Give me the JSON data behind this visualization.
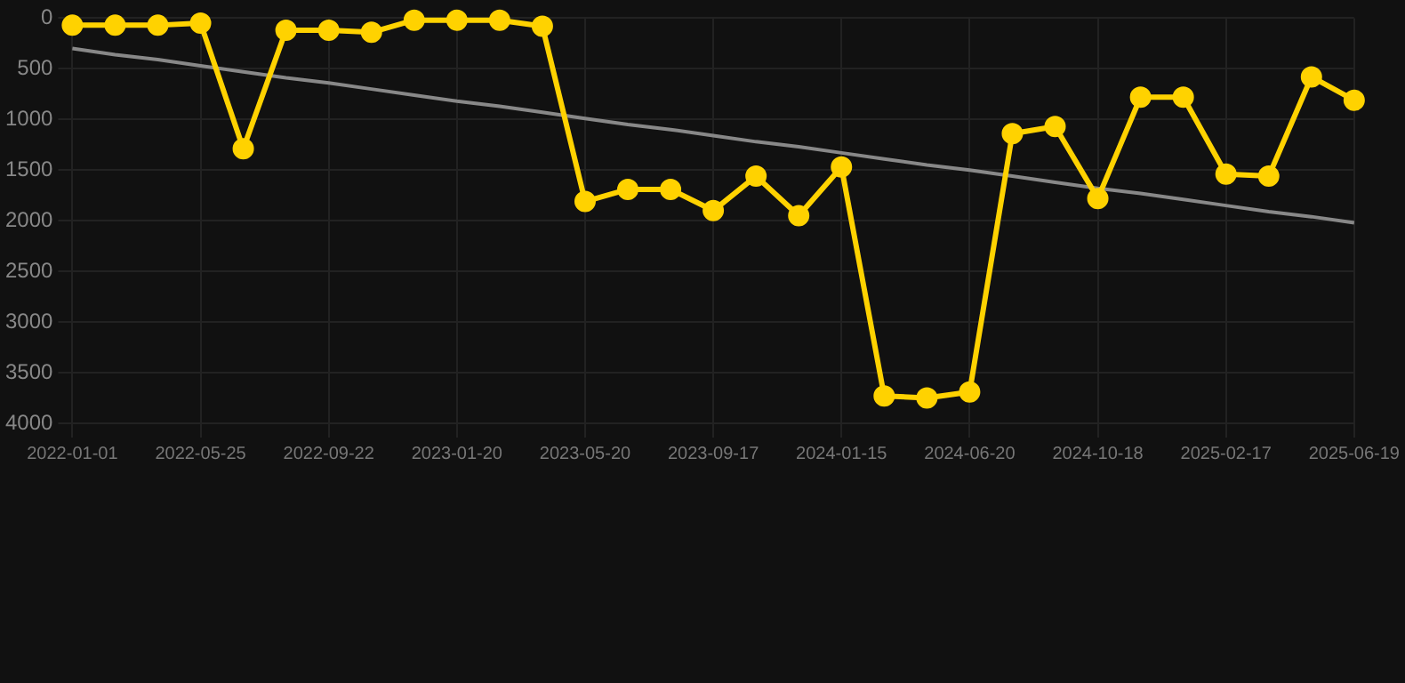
{
  "chart_data": {
    "type": "line",
    "categories": [
      "2022-01-01",
      null,
      null,
      "2022-05-25",
      null,
      null,
      "2022-09-22",
      null,
      null,
      "2023-01-20",
      null,
      null,
      "2023-05-20",
      null,
      null,
      "2023-09-17",
      null,
      null,
      "2024-01-15",
      null,
      null,
      "2024-06-20",
      null,
      null,
      "2024-10-18",
      null,
      null,
      "2025-02-17",
      null,
      null,
      "2025-06-19"
    ],
    "series": [
      {
        "color": "#ffd200",
        "values": [
          70,
          70,
          70,
          50,
          1290,
          120,
          120,
          140,
          20,
          20,
          20,
          80,
          1810,
          1690,
          1690,
          1900,
          1560,
          1950,
          1470,
          3730,
          3750,
          3690,
          1140,
          1070,
          1780,
          780,
          780,
          1540,
          1560,
          580,
          810
        ]
      },
      {
        "type": "line",
        "color": "#888888",
        "marker": "none",
        "values": [
          300,
          360,
          410,
          470,
          530,
          590,
          640,
          700,
          760,
          820,
          870,
          930,
          990,
          1050,
          1100,
          1160,
          1220,
          1270,
          1330,
          1390,
          1450,
          1500,
          1560,
          1620,
          1680,
          1730,
          1790,
          1850,
          1910,
          1960,
          2020
        ]
      }
    ],
    "ylim": [
      4000,
      0
    ],
    "yticks": [
      0,
      500,
      1000,
      1500,
      2000,
      2500,
      3000,
      3500,
      4000
    ],
    "grid": true,
    "marker": "circle",
    "legend": false
  }
}
